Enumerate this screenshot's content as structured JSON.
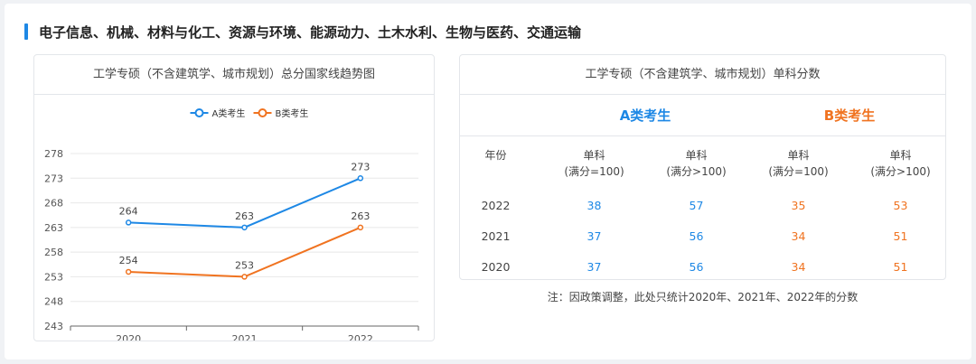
{
  "heading": "电子信息、机械、材料与化工、资源与环境、能源动力、土木水利、生物与医药、交通运输",
  "colors": {
    "series_a": "#1e88e5",
    "series_b": "#f07320",
    "accent": "#1e88e5"
  },
  "left_panel": {
    "title": "工学专硕（不含建筑学、城市规划）总分国家线趋势图"
  },
  "chart_data": {
    "type": "line",
    "x": [
      "2020",
      "2021",
      "2022"
    ],
    "series": [
      {
        "name": "A类考生",
        "values": [
          264,
          263,
          273
        ]
      },
      {
        "name": "B类考生",
        "values": [
          254,
          253,
          263
        ]
      }
    ],
    "yticks": [
      243,
      248,
      253,
      258,
      263,
      268,
      273,
      278
    ],
    "ylim": [
      243,
      278
    ],
    "grid": true,
    "legend": "top-center"
  },
  "right_panel": {
    "title": "工学专硕（不含建筑学、城市规划）单科分数",
    "group_a": "A类考生",
    "group_b": "B类考生",
    "columns": [
      {
        "l1": "年份",
        "l2": ""
      },
      {
        "l1": "单科",
        "l2": "(满分=100)"
      },
      {
        "l1": "单科",
        "l2": "(满分>100)"
      },
      {
        "l1": "单科",
        "l2": "(满分=100)"
      },
      {
        "l1": "单科",
        "l2": "(满分>100)"
      }
    ],
    "rows": [
      [
        "2022",
        "38",
        "57",
        "35",
        "53"
      ],
      [
        "2021",
        "37",
        "56",
        "34",
        "51"
      ],
      [
        "2020",
        "37",
        "56",
        "34",
        "51"
      ]
    ]
  },
  "note": "注：因政策调整，此处只统计2020年、2021年、2022年的分数"
}
